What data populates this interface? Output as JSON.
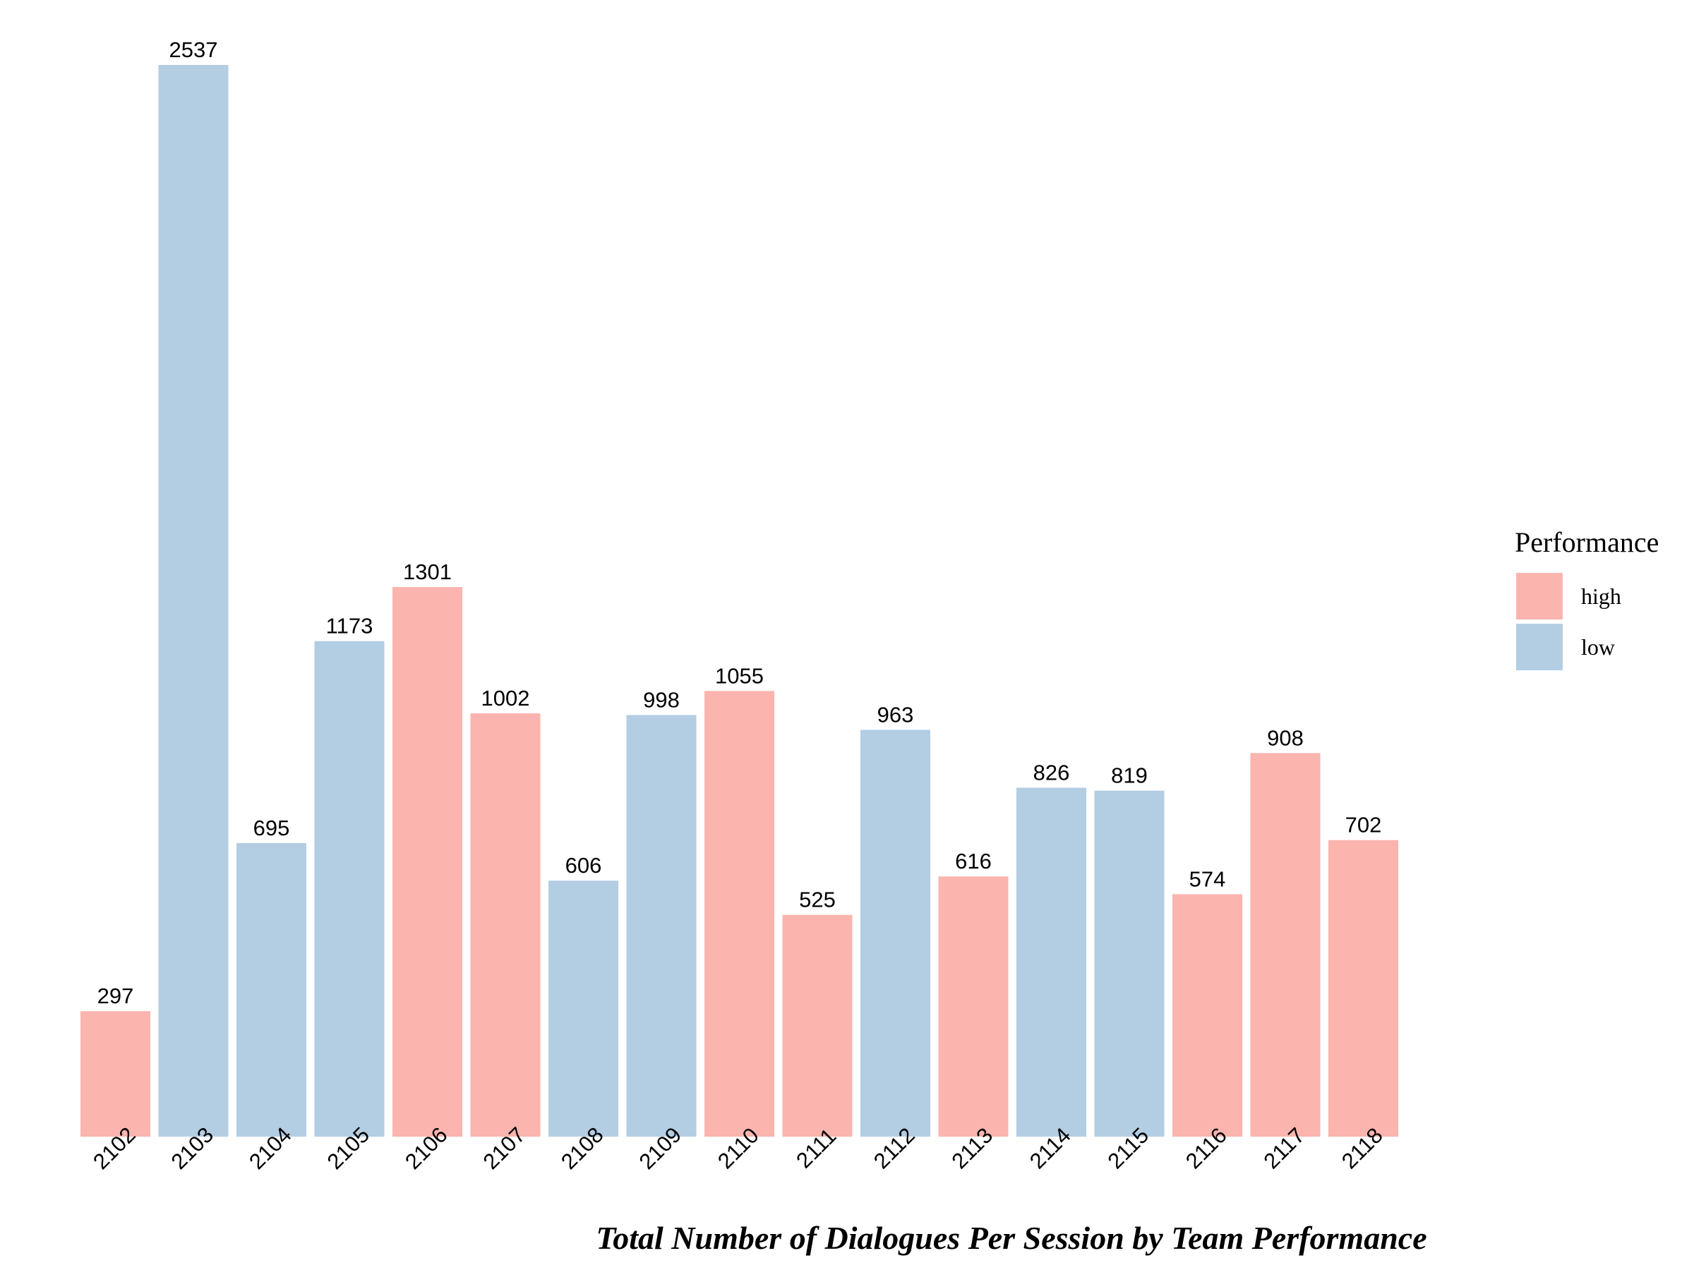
{
  "chart_data": {
    "type": "bar",
    "title": "Total Number of Dialogues Per Session by Team Performance",
    "xlabel": "",
    "ylabel": "",
    "categories": [
      "2102",
      "2103",
      "2104",
      "2105",
      "2106",
      "2107",
      "2108",
      "2109",
      "2110",
      "2111",
      "2112",
      "2113",
      "2114",
      "2115",
      "2116",
      "2117",
      "2118"
    ],
    "values": [
      297,
      2537,
      695,
      1173,
      1301,
      1002,
      606,
      998,
      1055,
      525,
      963,
      616,
      826,
      819,
      574,
      908,
      702
    ],
    "groups": [
      "high",
      "low",
      "low",
      "low",
      "high",
      "high",
      "low",
      "low",
      "high",
      "high",
      "low",
      "high",
      "low",
      "low",
      "high",
      "high",
      "high"
    ],
    "ylim": [
      0,
      2537
    ],
    "grid": false,
    "data_labels": true,
    "legend": {
      "title": "Performance",
      "placement": "right",
      "items": [
        {
          "name": "high",
          "color": "#FBB4AE"
        },
        {
          "name": "low",
          "color": "#B3CDE3"
        }
      ]
    }
  }
}
